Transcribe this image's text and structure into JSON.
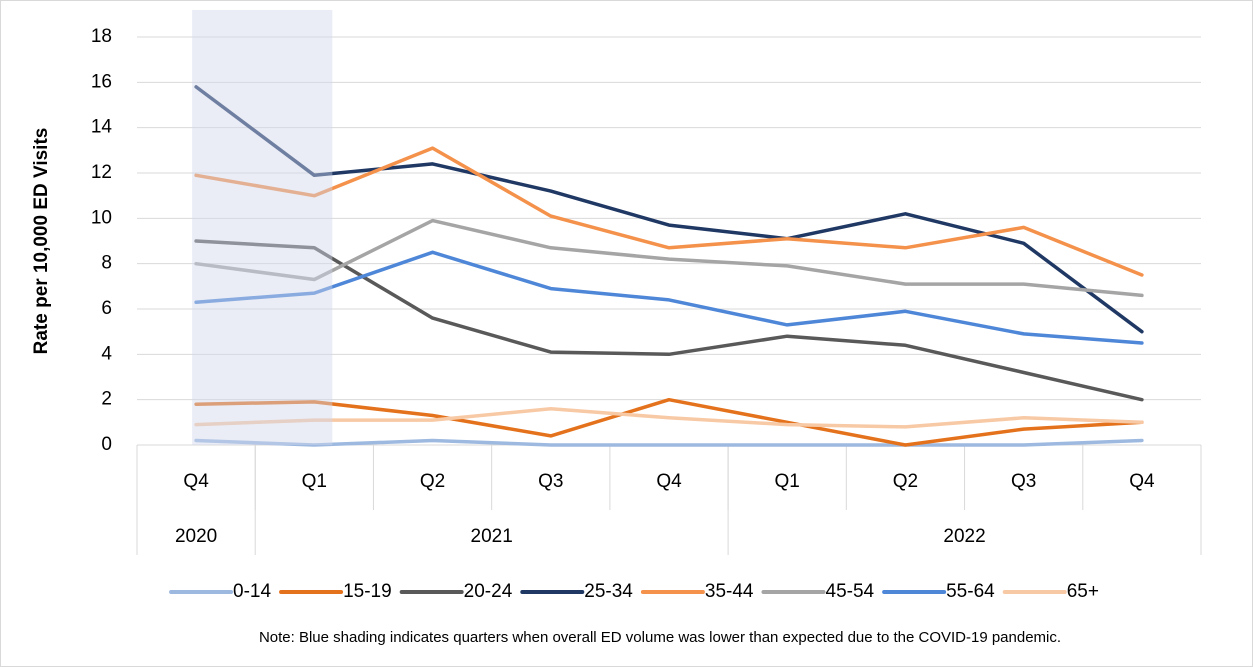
{
  "chart_data": {
    "type": "line",
    "y_label": "Rate per 10,000 ED Visits",
    "categories": [
      "Q4",
      "Q1",
      "Q2",
      "Q3",
      "Q4",
      "Q1",
      "Q2",
      "Q3",
      "Q4"
    ],
    "year_groups": [
      {
        "label": "2020",
        "count": 1
      },
      {
        "label": "2021",
        "count": 4
      },
      {
        "label": "2022",
        "count": 4
      }
    ],
    "shaded": [
      true,
      true,
      false,
      false,
      false,
      false,
      false,
      false,
      false
    ],
    "shade_color": "rgba(208,216,234,0.45)",
    "ylim": [
      0,
      18
    ],
    "yticks": [
      0,
      2,
      4,
      6,
      8,
      10,
      12,
      14,
      16,
      18
    ],
    "grid": true,
    "legend": "bottom",
    "series": [
      {
        "name": "0-14",
        "color": "#9DB9E0",
        "values": [
          0.2,
          0.0,
          0.2,
          0.0,
          0.0,
          0.0,
          0.0,
          0.0,
          0.2
        ]
      },
      {
        "name": "15-19",
        "color": "#E4721C",
        "values": [
          1.8,
          1.9,
          1.3,
          0.4,
          2.0,
          1.0,
          0.0,
          0.7,
          1.0
        ]
      },
      {
        "name": "20-24",
        "color": "#595959",
        "values": [
          9.0,
          8.7,
          5.6,
          4.1,
          4.0,
          4.8,
          4.4,
          3.2,
          2.0
        ]
      },
      {
        "name": "25-34",
        "color": "#203864",
        "values": [
          15.8,
          11.9,
          12.4,
          11.2,
          9.7,
          9.1,
          10.2,
          8.9,
          5.0
        ]
      },
      {
        "name": "35-44",
        "color": "#F4914B",
        "values": [
          11.9,
          11.0,
          13.1,
          10.1,
          8.7,
          9.1,
          8.7,
          9.6,
          7.5
        ]
      },
      {
        "name": "45-54",
        "color": "#A5A5A5",
        "values": [
          8.0,
          7.3,
          9.9,
          8.7,
          8.2,
          7.9,
          7.1,
          7.1,
          6.6
        ]
      },
      {
        "name": "55-64",
        "color": "#4F87D8",
        "values": [
          6.3,
          6.7,
          8.5,
          6.9,
          6.4,
          5.3,
          5.9,
          4.9,
          4.5
        ]
      },
      {
        "name": "65+",
        "color": "#F8C9A5",
        "values": [
          0.9,
          1.1,
          1.1,
          1.6,
          1.2,
          0.9,
          0.8,
          1.2,
          1.0
        ]
      }
    ],
    "note": "Note: Blue shading indicates quarters when overall ED volume was lower than expected due to the COVID-19 pandemic."
  }
}
